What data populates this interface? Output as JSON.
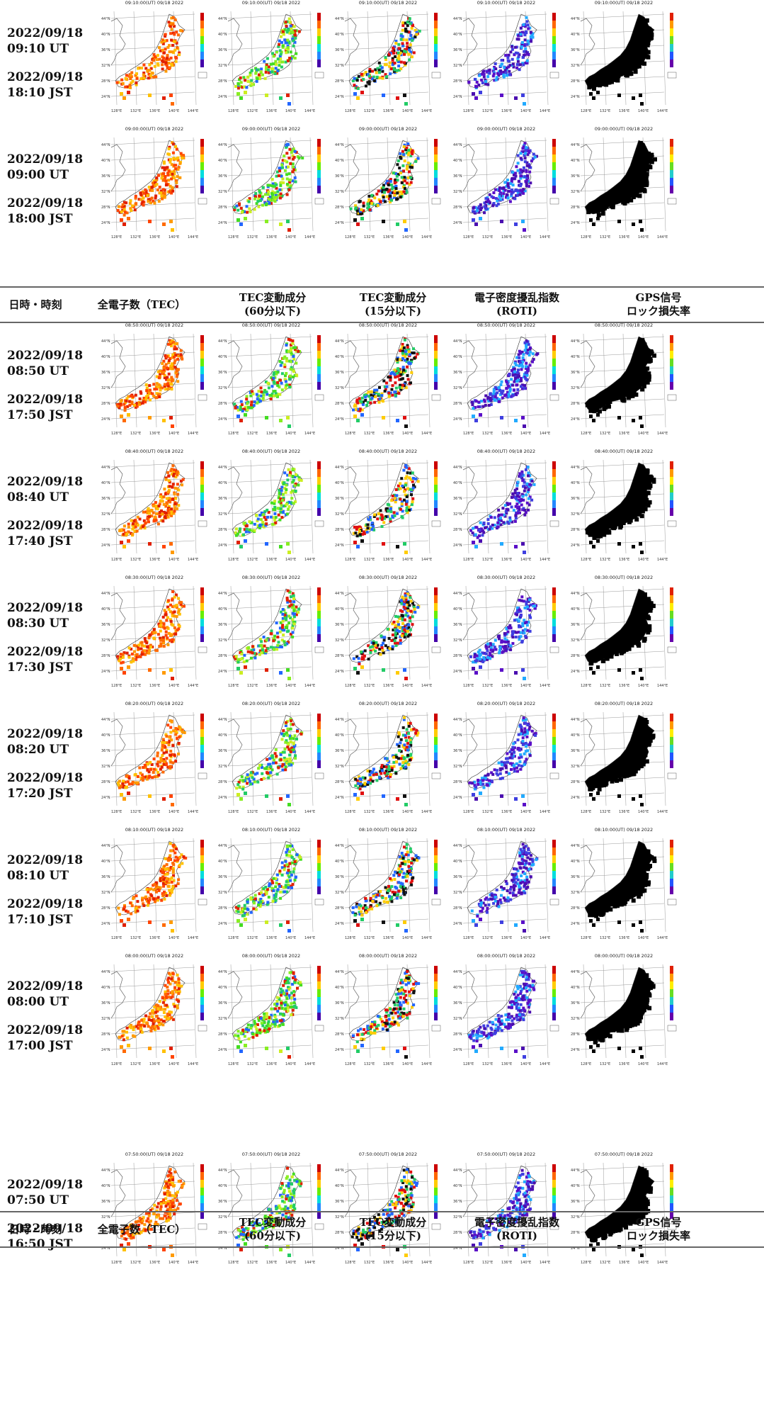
{
  "panel_title_suffix": "(UT) 09/18 2022",
  "axis_lat": [
    "44°N",
    "40°N",
    "36°N",
    "32°N",
    "28°N",
    "24°N"
  ],
  "axis_lon": [
    "128°E",
    "132°E",
    "136°E",
    "140°E",
    "144°E"
  ],
  "headers": [
    "日時・時刻",
    "全電子数（TEC）",
    "TEC変動成分\n(60分以下)",
    "TEC変動成分\n(15分以下)",
    "電子密度擾乱指数\n(ROTI)",
    "GPS信号\nロック損失率"
  ],
  "rows": [
    {
      "ut": "2022/09/18\n09:10 UT",
      "jst": "2022/09/18\n18:10 JST",
      "time": "09:10:00"
    },
    {
      "ut": "2022/09/18\n09:00 UT",
      "jst": "2022/09/18\n18:00 JST",
      "time": "09:00:00"
    },
    {
      "ut": "2022/09/18\n08:50 UT",
      "jst": "2022/09/18\n17:50 JST",
      "time": "08:50:00"
    },
    {
      "ut": "2022/09/18\n08:40 UT",
      "jst": "2022/09/18\n17:40 JST",
      "time": "08:40:00"
    },
    {
      "ut": "2022/09/18\n08:30 UT",
      "jst": "2022/09/18\n17:30 JST",
      "time": "08:30:00"
    },
    {
      "ut": "2022/09/18\n08:20 UT",
      "jst": "2022/09/18\n17:20 JST",
      "time": "08:20:00"
    },
    {
      "ut": "2022/09/18\n08:10 UT",
      "jst": "2022/09/18\n17:10 JST",
      "time": "08:10:00"
    },
    {
      "ut": "2022/09/18\n08:00 UT",
      "jst": "2022/09/18\n17:00 JST",
      "time": "08:00:00"
    },
    {
      "ut": "2022/09/18\n07:50 UT",
      "jst": "2022/09/18\n16:50 JST",
      "time": "07:50:00"
    }
  ],
  "map_types": [
    "tec",
    "dtec60",
    "dtec15",
    "roti",
    "lol"
  ],
  "colors": {
    "tec": [
      "#ff6a00",
      "#ff9a00",
      "#ffc000",
      "#e02000",
      "#ff4400"
    ],
    "dtec60": [
      "#44dd22",
      "#88ee22",
      "#ccee22",
      "#22cc66",
      "#e02000",
      "#2266ff"
    ],
    "dtec15": [
      "#e01010",
      "#111111",
      "#22cc66",
      "#ffcc00",
      "#2266ff"
    ],
    "roti": [
      "#5a0fc8",
      "#4b0fb0",
      "#3f3fe0",
      "#22aaff"
    ],
    "lol": [
      "#000000"
    ]
  }
}
